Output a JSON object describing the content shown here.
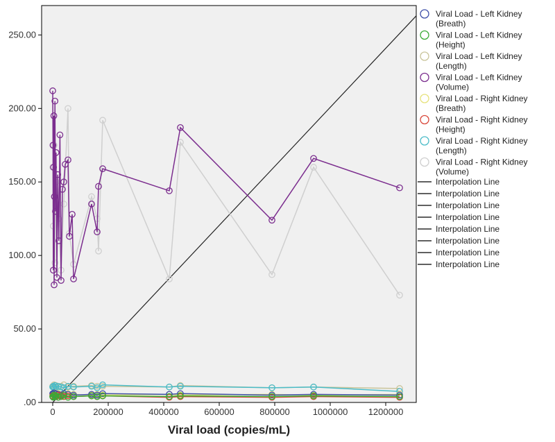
{
  "chart_data": {
    "type": "scatter",
    "title": "",
    "xlabel": "Viral load (copies/mL)",
    "ylabel": "",
    "xlim": [
      -40000,
      1310000
    ],
    "ylim": [
      0,
      270
    ],
    "x_ticks": [
      0,
      200000,
      400000,
      600000,
      800000,
      1000000,
      1200000
    ],
    "x_tick_labels": [
      "0",
      "200000",
      "400000",
      "600000",
      "800000",
      "1000000",
      "1200000"
    ],
    "y_ticks": [
      0,
      50,
      100,
      150,
      200,
      250
    ],
    "y_tick_labels": [
      ".00",
      "50.00",
      "100.00",
      "150.00",
      "200.00",
      "250.00"
    ],
    "grid": false,
    "legend_position": "right",
    "reference_line": {
      "x": [
        0,
        1310000
      ],
      "y": [
        0,
        263
      ]
    },
    "interpolation_labels": [
      "Interpolation Line",
      "Interpolation Line",
      "Interpolation Line",
      "Interpolation Line",
      "Interpolation Line",
      "Interpolation Line",
      "Interpolation Line",
      "Interpolation Line"
    ],
    "series": [
      {
        "name": "Viral Load - Left Kidney (Breath)",
        "color": "#3d4ea8",
        "x": [
          0,
          2000,
          5000,
          8000,
          12000,
          20000,
          30000,
          40000,
          55000,
          75000,
          140000,
          160000,
          180000,
          420000,
          460000,
          790000,
          940000,
          1250000
        ],
        "y": [
          6,
          5.5,
          6.5,
          5,
          6,
          5.5,
          5,
          6,
          5.5,
          5,
          5.5,
          5,
          6,
          5.5,
          6,
          5,
          5.5,
          5
        ]
      },
      {
        "name": "Viral Load - Left Kidney (Height)",
        "color": "#3aaa35",
        "x": [
          0,
          2000,
          5000,
          8000,
          12000,
          20000,
          30000,
          40000,
          55000,
          75000,
          140000,
          160000,
          180000,
          420000,
          460000,
          790000,
          940000,
          1250000
        ],
        "y": [
          4,
          3.5,
          5,
          4,
          4.5,
          3.5,
          4,
          5,
          3.5,
          4,
          4.5,
          4,
          4.5,
          4,
          4.5,
          4,
          4.5,
          4
        ]
      },
      {
        "name": "Viral Load - Left Kidney (Length)",
        "color": "#c9c49a",
        "x": [
          0,
          2000,
          5000,
          8000,
          12000,
          20000,
          30000,
          40000,
          55000,
          75000,
          140000,
          160000,
          180000,
          420000,
          460000,
          790000,
          940000,
          1250000
        ],
        "y": [
          11,
          10.5,
          12,
          10,
          11.5,
          10.5,
          11,
          12,
          10.5,
          11,
          11.5,
          11,
          11,
          10.5,
          11.5,
          10,
          10.5,
          9.5
        ]
      },
      {
        "name": "Viral Load - Left Kidney (Volume)",
        "color": "#7b2d8e",
        "x": [
          0,
          1000,
          2000,
          3000,
          4000,
          5000,
          6000,
          8000,
          10000,
          12000,
          15000,
          18000,
          22000,
          26000,
          30000,
          35000,
          40000,
          45000,
          55000,
          60000,
          70000,
          75000,
          140000,
          160000,
          165000,
          180000,
          420000,
          460000,
          790000,
          940000,
          1250000
        ],
        "y": [
          212,
          175,
          90,
          160,
          195,
          80,
          140,
          205,
          130,
          170,
          85,
          155,
          110,
          182,
          83,
          145,
          150,
          162,
          165,
          113,
          128,
          84,
          135,
          116,
          147,
          159,
          144,
          187,
          124,
          166,
          146
        ]
      },
      {
        "name": "Viral Load - Right Kidney (Breath)",
        "color": "#e6e27a",
        "x": [
          0,
          2000,
          5000,
          8000,
          12000,
          20000,
          30000,
          40000,
          55000,
          75000,
          140000,
          160000,
          180000,
          420000,
          460000,
          790000,
          940000,
          1250000
        ],
        "y": [
          5.5,
          6,
          5,
          6.5,
          5.5,
          6,
          5.5,
          5,
          6,
          5.5,
          5,
          5.5,
          5,
          5.5,
          5,
          5.5,
          5,
          5.5
        ]
      },
      {
        "name": "Viral Load - Right Kidney (Height)",
        "color": "#d9473a",
        "x": [
          0,
          2000,
          5000,
          8000,
          12000,
          20000,
          30000,
          40000,
          55000,
          75000,
          140000,
          160000,
          180000,
          420000,
          460000,
          790000,
          940000,
          1250000
        ],
        "y": [
          4.5,
          4,
          5,
          4.5,
          4,
          5,
          4.5,
          4,
          4.5,
          4,
          4.5,
          4,
          4.5,
          3.5,
          4,
          3.5,
          4,
          3.5
        ]
      },
      {
        "name": "Viral Load - Right Kidney (Length)",
        "color": "#4bbcc8",
        "x": [
          0,
          2000,
          5000,
          8000,
          12000,
          20000,
          30000,
          40000,
          55000,
          75000,
          140000,
          160000,
          180000,
          420000,
          460000,
          790000,
          940000,
          1250000
        ],
        "y": [
          10.5,
          11,
          10,
          11.5,
          10.5,
          11,
          10.5,
          10,
          11,
          10.5,
          11,
          10,
          12,
          10.5,
          11,
          10,
          10.5,
          7.5
        ]
      },
      {
        "name": "Viral Load - Right Kidney (Volume)",
        "color": "#cfcfcf",
        "x": [
          0,
          2000,
          5000,
          8000,
          12000,
          20000,
          30000,
          40000,
          55000,
          60000,
          75000,
          140000,
          160000,
          165000,
          180000,
          420000,
          460000,
          790000,
          940000,
          1250000
        ],
        "y": [
          160,
          120,
          175,
          95,
          150,
          125,
          90,
          135,
          200,
          115,
          94,
          140,
          125,
          103,
          192,
          84,
          177,
          87,
          160,
          73
        ]
      }
    ]
  }
}
